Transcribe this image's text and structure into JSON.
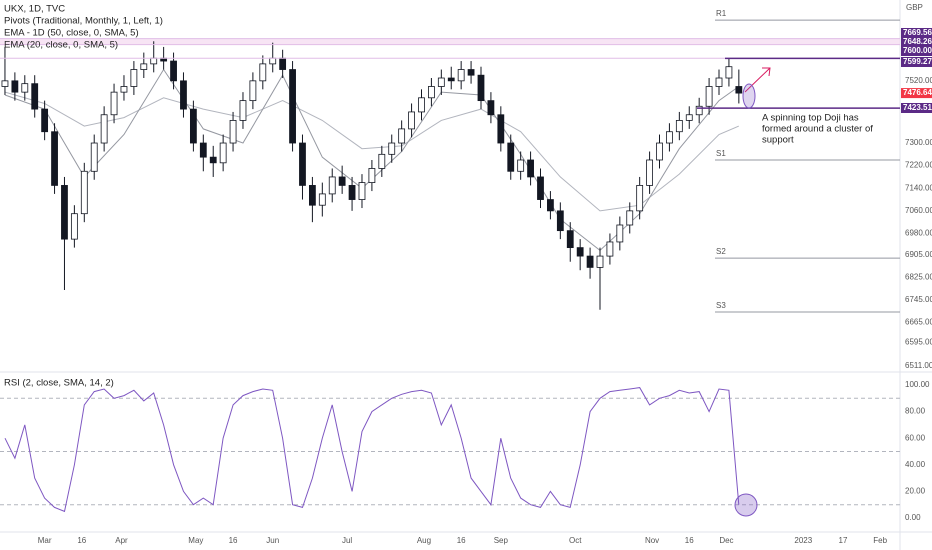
{
  "chart_data": {
    "type": "candlestick",
    "title": "UKX, 1D, TVC",
    "indicators": [
      "Pivots (Traditional, Monthly, 1, Left, 1)",
      "EMA - 1D (50, close, 0, SMA, 5)",
      "EMA (20, close, 0, SMA, 5)"
    ],
    "currency": "GBP",
    "x": [
      -16,
      -12,
      -8,
      -4,
      0,
      4,
      8,
      12,
      16,
      20,
      24,
      28,
      32,
      36,
      40,
      44,
      48,
      52,
      56,
      60,
      64,
      68,
      72,
      76,
      80,
      84,
      88,
      92,
      96,
      100,
      104,
      108,
      112,
      116,
      120,
      124,
      128,
      132,
      136,
      140,
      144,
      148,
      152,
      156,
      160,
      164,
      168,
      172,
      176,
      180,
      184,
      188,
      192,
      196,
      200,
      204,
      208,
      212,
      216,
      220,
      224,
      228,
      232,
      236,
      240,
      244,
      248,
      252,
      256,
      260,
      264,
      268,
      272,
      276,
      280
    ],
    "open": [
      7500,
      7520,
      7480,
      7510,
      7420,
      7340,
      7150,
      6960,
      7050,
      7200,
      7300,
      7400,
      7480,
      7500,
      7560,
      7580,
      7600,
      7590,
      7520,
      7420,
      7300,
      7250,
      7230,
      7300,
      7380,
      7450,
      7520,
      7580,
      7600,
      7560,
      7300,
      7150,
      7080,
      7120,
      7180,
      7150,
      7100,
      7160,
      7210,
      7260,
      7300,
      7350,
      7410,
      7460,
      7500,
      7530,
      7520,
      7560,
      7540,
      7450,
      7400,
      7300,
      7200,
      7240,
      7180,
      7100,
      7060,
      6990,
      6930,
      6900,
      6860,
      6900,
      6950,
      7010,
      7060,
      7150,
      7240,
      7300,
      7340,
      7380,
      7400,
      7430,
      7500,
      7530,
      7500
    ],
    "high": [
      7640,
      7550,
      7540,
      7540,
      7450,
      7370,
      7180,
      7080,
      7230,
      7330,
      7430,
      7510,
      7540,
      7590,
      7620,
      7660,
      7640,
      7620,
      7550,
      7450,
      7330,
      7290,
      7330,
      7410,
      7480,
      7550,
      7610,
      7655,
      7630,
      7590,
      7330,
      7180,
      7160,
      7210,
      7220,
      7180,
      7190,
      7240,
      7290,
      7330,
      7380,
      7440,
      7490,
      7530,
      7560,
      7570,
      7590,
      7590,
      7570,
      7480,
      7430,
      7330,
      7270,
      7270,
      7210,
      7130,
      7090,
      7020,
      6960,
      6930,
      6930,
      6980,
      7040,
      7090,
      7180,
      7270,
      7330,
      7370,
      7410,
      7430,
      7460,
      7530,
      7560,
      7600,
      7560
    ],
    "low": [
      7470,
      7450,
      7450,
      7390,
      7310,
      7120,
      6780,
      6930,
      7020,
      7170,
      7270,
      7370,
      7450,
      7470,
      7530,
      7550,
      7560,
      7490,
      7390,
      7270,
      7200,
      7180,
      7200,
      7270,
      7350,
      7420,
      7490,
      7550,
      7530,
      7270,
      7100,
      7020,
      7040,
      7090,
      7120,
      7060,
      7070,
      7130,
      7180,
      7230,
      7270,
      7320,
      7380,
      7430,
      7470,
      7490,
      7490,
      7510,
      7420,
      7370,
      7270,
      7170,
      7170,
      7150,
      7070,
      7030,
      6960,
      6880,
      6850,
      6820,
      6710,
      6870,
      6920,
      6980,
      7030,
      7120,
      7210,
      7270,
      7310,
      7350,
      7370,
      7400,
      7470,
      7500,
      7440
    ],
    "close": [
      7520,
      7480,
      7510,
      7420,
      7340,
      7150,
      6960,
      7050,
      7200,
      7300,
      7400,
      7480,
      7500,
      7560,
      7580,
      7600,
      7590,
      7520,
      7420,
      7300,
      7250,
      7230,
      7300,
      7380,
      7450,
      7520,
      7580,
      7600,
      7560,
      7300,
      7150,
      7080,
      7120,
      7180,
      7150,
      7100,
      7160,
      7210,
      7260,
      7300,
      7350,
      7410,
      7460,
      7500,
      7530,
      7520,
      7560,
      7540,
      7450,
      7400,
      7300,
      7200,
      7240,
      7180,
      7100,
      7060,
      6990,
      6930,
      6900,
      6860,
      6900,
      6950,
      7010,
      7060,
      7150,
      7240,
      7300,
      7340,
      7380,
      7400,
      7430,
      7500,
      7530,
      7570,
      7476.64
    ],
    "up_color": "#ffffff",
    "down_color": "#131722",
    "last_color": "#f23645",
    "xlim": [
      -18,
      345
    ],
    "xticks": [
      {
        "value": 0,
        "label": "Mar"
      },
      {
        "value": 15,
        "label": "16"
      },
      {
        "value": 31,
        "label": "Apr"
      },
      {
        "value": 61,
        "label": "May"
      },
      {
        "value": 76,
        "label": "16"
      },
      {
        "value": 92,
        "label": "Jun"
      },
      {
        "value": 122,
        "label": "Jul"
      },
      {
        "value": 153,
        "label": "Aug"
      },
      {
        "value": 168,
        "label": "16"
      },
      {
        "value": 184,
        "label": "Sep"
      },
      {
        "value": 214,
        "label": "Oct"
      },
      {
        "value": 245,
        "label": "Nov"
      },
      {
        "value": 260,
        "label": "16"
      },
      {
        "value": 275,
        "label": "Dec"
      },
      {
        "value": 306,
        "label": "2023"
      },
      {
        "value": 322,
        "label": "17"
      },
      {
        "value": 337,
        "label": "Feb"
      }
    ],
    "ylim": [
      6497,
      7806
    ],
    "yticks": [
      {
        "value": 7520,
        "label": "7520.00"
      },
      {
        "value": 7300,
        "label": "7300.00"
      },
      {
        "value": 7220,
        "label": "7220.00"
      },
      {
        "value": 7140,
        "label": "7140.00"
      },
      {
        "value": 7060,
        "label": "7060.00"
      },
      {
        "value": 6980,
        "label": "6980.00"
      },
      {
        "value": 6905,
        "label": "6905.00"
      },
      {
        "value": 6825,
        "label": "6825.00"
      },
      {
        "value": 6745,
        "label": "6745.00"
      },
      {
        "value": 6665,
        "label": "6665.00"
      },
      {
        "value": 6595,
        "label": "6595.00"
      },
      {
        "value": 6511,
        "label": "6511.00"
      }
    ],
    "ma_series": [
      {
        "name": "EMA - 1D (50, close, 0, SMA, 5)",
        "color": "#b2b5be",
        "x": [
          -16,
          0,
          16,
          32,
          48,
          64,
          80,
          96,
          112,
          128,
          144,
          160,
          176,
          192,
          208,
          224,
          240,
          256,
          272,
          280
        ],
        "values": [
          7480,
          7440,
          7360,
          7390,
          7460,
          7420,
          7390,
          7450,
          7380,
          7280,
          7290,
          7380,
          7420,
          7340,
          7180,
          7060,
          7080,
          7190,
          7330,
          7360
        ]
      },
      {
        "name": "EMA (20, close, 0, SMA, 5)",
        "color": "#9598a1",
        "x": [
          -16,
          0,
          16,
          32,
          48,
          64,
          80,
          96,
          112,
          128,
          144,
          160,
          176,
          192,
          208,
          224,
          240,
          256,
          272,
          280
        ],
        "values": [
          7470,
          7420,
          7180,
          7330,
          7560,
          7350,
          7300,
          7540,
          7250,
          7140,
          7270,
          7480,
          7470,
          7260,
          7030,
          6920,
          7050,
          7280,
          7450,
          7500
        ]
      }
    ],
    "levels": [
      7669.56,
      7648.26,
      {
        "value": 7600,
        "label": "7600.00"
      },
      7599.27,
      7423.51
    ],
    "level_color": "#5b2a86",
    "zone_color": "#f3d9f0",
    "pivots": [
      {
        "label": "R1",
        "value": 7735
      },
      {
        "label": "S1",
        "value": 7240
      },
      {
        "label": "S2",
        "value": 6893
      },
      {
        "label": "S3",
        "value": 6702
      }
    ],
    "annotation": [
      "A spinning top Doji has",
      "formed around a cluster of",
      "support"
    ],
    "rsi": {
      "title": "RSI (2, close, SMA, 14, 2)",
      "color": "#7e57c2",
      "values": [
        60,
        45,
        70,
        30,
        15,
        8,
        5,
        40,
        85,
        95,
        97,
        90,
        92,
        96,
        88,
        94,
        70,
        40,
        20,
        10,
        15,
        10,
        60,
        85,
        92,
        95,
        97,
        96,
        60,
        10,
        8,
        30,
        60,
        85,
        50,
        20,
        65,
        80,
        85,
        90,
        93,
        95,
        96,
        94,
        70,
        85,
        60,
        30,
        20,
        10,
        60,
        30,
        15,
        10,
        8,
        20,
        10,
        8,
        40,
        80,
        90,
        95,
        96,
        97,
        98,
        85,
        90,
        92,
        96,
        94,
        95,
        80,
        97,
        96,
        10
      ],
      "ylim": [
        -9,
        107.5
      ],
      "yticks": [
        {
          "value": 0,
          "label": "0.00"
        },
        {
          "value": 20,
          "label": "20.00"
        },
        {
          "value": 40,
          "label": "40.00"
        },
        {
          "value": 60,
          "label": "60.00"
        },
        {
          "value": 80,
          "label": "80.00"
        },
        {
          "value": 100,
          "label": "100.00"
        }
      ],
      "bands": [
        90,
        50,
        10
      ]
    }
  }
}
